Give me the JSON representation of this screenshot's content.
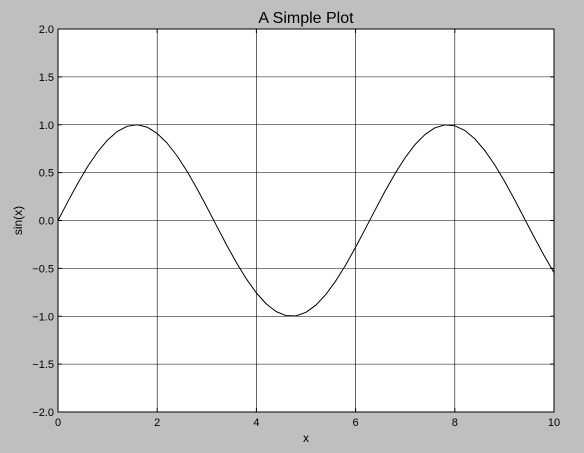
{
  "chart_data": {
    "type": "line",
    "title": "A Simple Plot",
    "xlabel": "x",
    "ylabel": "sin(x)",
    "xlim": [
      0,
      10
    ],
    "ylim": [
      -2.0,
      2.0
    ],
    "grid": true,
    "x_ticks": [
      0,
      2,
      4,
      6,
      8,
      10
    ],
    "y_ticks": [
      -2.0,
      -1.5,
      -1.0,
      -0.5,
      0.0,
      0.5,
      1.0,
      1.5,
      2.0
    ],
    "x_tick_labels": [
      "0",
      "2",
      "4",
      "6",
      "8",
      "10"
    ],
    "y_tick_labels": [
      "−2.0",
      "−1.5",
      "−1.0",
      "−0.5",
      "0.0",
      "0.5",
      "1.0",
      "1.5",
      "2.0"
    ],
    "series": [
      {
        "x": [
          0,
          0.2,
          0.4,
          0.6,
          0.8,
          1.0,
          1.2,
          1.4,
          1.6,
          1.8,
          2.0,
          2.2,
          2.4,
          2.6,
          2.8,
          3.0,
          3.2,
          3.4,
          3.6,
          3.8,
          4.0,
          4.2,
          4.4,
          4.6,
          4.8,
          5.0,
          5.2,
          5.4,
          5.6,
          5.8,
          6.0,
          6.2,
          6.4,
          6.6,
          6.8,
          7.0,
          7.2,
          7.4,
          7.6,
          7.8,
          8.0,
          8.2,
          8.4,
          8.6,
          8.8,
          9.0,
          9.2,
          9.4,
          9.6,
          9.8,
          10.0
        ],
        "values": [
          0.0,
          0.199,
          0.389,
          0.565,
          0.717,
          0.841,
          0.932,
          0.985,
          1.0,
          0.974,
          0.909,
          0.808,
          0.675,
          0.516,
          0.335,
          0.141,
          -0.058,
          -0.256,
          -0.443,
          -0.612,
          -0.757,
          -0.872,
          -0.952,
          -0.994,
          -0.996,
          -0.959,
          -0.883,
          -0.773,
          -0.631,
          -0.465,
          -0.279,
          -0.083,
          0.117,
          0.312,
          0.494,
          0.657,
          0.794,
          0.899,
          0.968,
          0.999,
          0.989,
          0.941,
          0.855,
          0.734,
          0.585,
          0.412,
          0.223,
          0.025,
          -0.174,
          -0.366,
          -0.544
        ],
        "color": "#000000"
      }
    ]
  }
}
